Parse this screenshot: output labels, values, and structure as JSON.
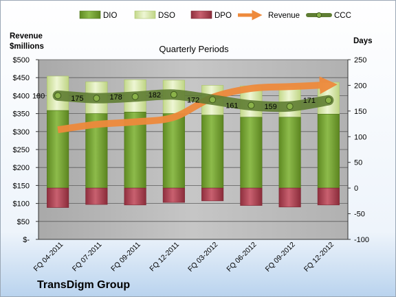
{
  "chart_data": {
    "type": "bar",
    "title": "Quarterly Periods",
    "company": "TransDigm Group",
    "categories": [
      "FQ 04-2011",
      "FQ 07-2011",
      "FQ 09-2011",
      "FQ 12-2011",
      "FQ 03-2012",
      "FQ 06-2012",
      "FQ 09-2012",
      "FQ 12-2012"
    ],
    "left_axis": {
      "label_line1": "Revenue",
      "label_line2": "$millions",
      "ylim": [
        0,
        500
      ],
      "ticks": [
        "$-",
        "$50",
        "$100",
        "$150",
        "$200",
        "$250",
        "$300",
        "$350",
        "$400",
        "$450",
        "$500"
      ]
    },
    "right_axis": {
      "label": "Days",
      "ylim": [
        -100,
        250
      ],
      "ticks": [
        "-100",
        "-50",
        "0",
        "50",
        "100",
        "150",
        "200",
        "250"
      ]
    },
    "series": [
      {
        "name": "DIO",
        "color": "#7aa83a",
        "values": [
          151,
          145,
          148,
          145,
          142,
          138,
          138,
          144
        ]
      },
      {
        "name": "DSO",
        "color": "#d7e8a8",
        "values": [
          67,
          62,
          63,
          65,
          58,
          61,
          60,
          62
        ]
      },
      {
        "name": "DPO",
        "color": "#b1485a",
        "values": [
          -38,
          -32,
          -33,
          -28,
          -25,
          -34,
          -37,
          -33
        ]
      },
      {
        "name": "Revenue",
        "color": "#e8843a",
        "values": [
          305,
          320,
          327,
          340,
          395,
          420,
          425,
          430
        ]
      },
      {
        "name": "CCC",
        "color": "#5f7d33",
        "values": [
          180,
          175,
          178,
          182,
          172,
          161,
          159,
          171
        ]
      }
    ],
    "ccc_labels": [
      "180",
      "175",
      "178",
      "182",
      "172",
      "161",
      "159",
      "171"
    ],
    "grid": true,
    "legend_position": "top"
  }
}
